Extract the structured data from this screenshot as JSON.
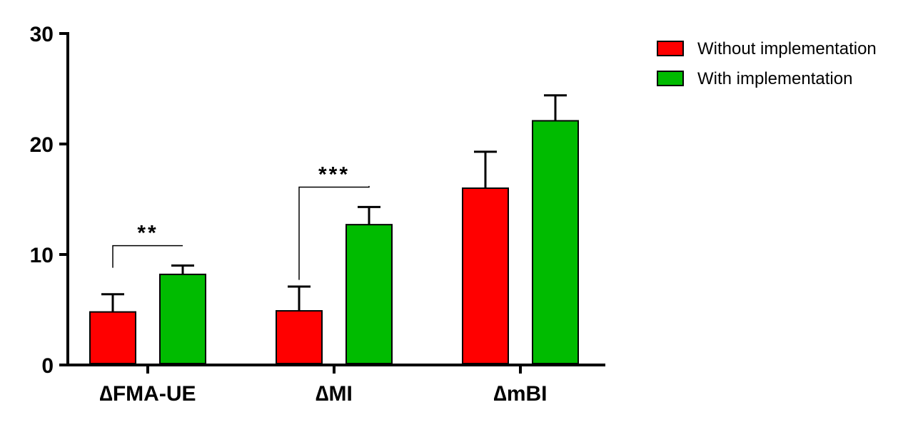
{
  "chart_data": {
    "type": "bar",
    "categories": [
      "∆FMA-UE",
      "∆MI",
      "∆mBI"
    ],
    "series": [
      {
        "name": "Without implementation",
        "color": "#ff0000",
        "values": [
          4.8,
          4.9,
          16.0
        ],
        "errors": [
          1.6,
          2.2,
          3.3
        ]
      },
      {
        "name": "With implementation",
        "color": "#00bb00",
        "values": [
          8.2,
          12.7,
          22.1
        ],
        "errors": [
          0.8,
          1.6,
          2.3
        ]
      }
    ],
    "yticks": [
      0,
      10,
      20,
      30
    ],
    "ylim": [
      0,
      30
    ],
    "significance": [
      {
        "category": "∆FMA-UE",
        "label": "**",
        "bracket_base": [
          8.8,
          10.8
        ]
      },
      {
        "category": "∆MI",
        "label": "***",
        "bracket_base": [
          7.7,
          16.2
        ]
      }
    ],
    "legend_position": "top-right"
  }
}
